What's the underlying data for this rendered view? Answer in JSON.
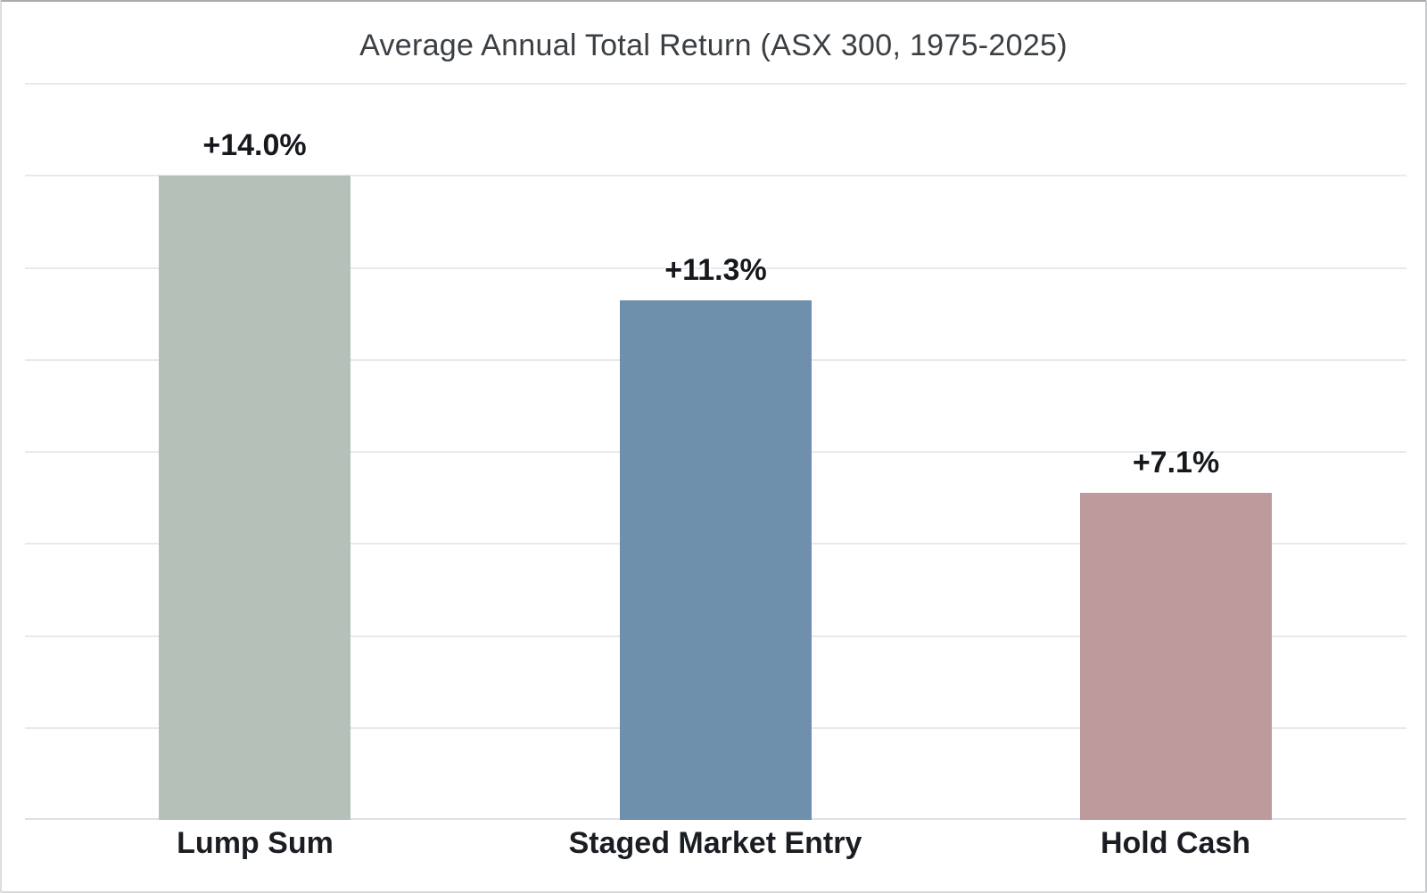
{
  "chart_data": {
    "type": "bar",
    "title": "Average Annual Total Return (ASX 300, 1975-2025)",
    "categories": [
      "Lump Sum",
      "Staged Market Entry",
      "Hold Cash"
    ],
    "values": [
      14.0,
      11.3,
      7.1
    ],
    "data_labels": [
      "+14.0%",
      "+11.3%",
      "+7.1%"
    ],
    "bar_colors": [
      "#b5c0b8",
      "#6e90ad",
      "#bd9a9b"
    ],
    "xlabel": "",
    "ylabel": "",
    "ylim": [
      0,
      16
    ],
    "grid_step": 2,
    "grid": true,
    "y_tick_labels": "hidden",
    "legend_position": "none",
    "colors": {
      "gridline": "#e6e9ef",
      "baseline": "#dde2e9",
      "title_text": "#3a3f43",
      "label_text": "#15181c",
      "border": "#c6c9ca",
      "background": "#ffffff"
    }
  }
}
